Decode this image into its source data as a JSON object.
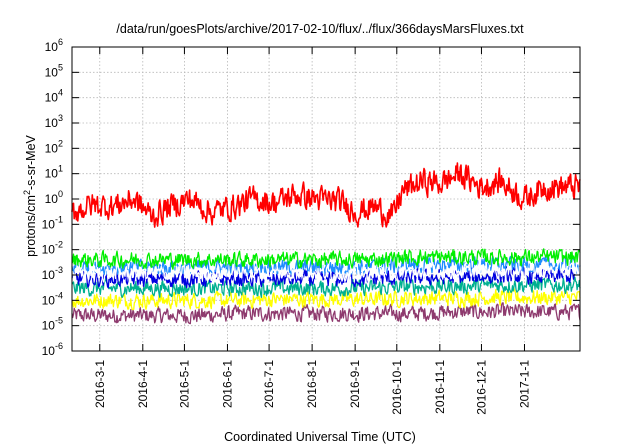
{
  "chart_data": {
    "type": "line",
    "title": "/data/run/goesPlots/archive/2017-02-10/flux/../flux/366daysMarsFluxes.txt",
    "xlabel": "Coordinated Universal Time (UTC)",
    "ylabel": {
      "prefix": "protons/cm",
      "sup": "2",
      "suffix": "-s-sr-MeV"
    },
    "yscale": "log",
    "ylim": [
      1e-06,
      1000000.0
    ],
    "y_ticks": [
      {
        "base": "10",
        "exp": "-6"
      },
      {
        "base": "10",
        "exp": "-5"
      },
      {
        "base": "10",
        "exp": "-4"
      },
      {
        "base": "10",
        "exp": "-3"
      },
      {
        "base": "10",
        "exp": "-2"
      },
      {
        "base": "10",
        "exp": "-1"
      },
      {
        "base": "10",
        "exp": "0"
      },
      {
        "base": "10",
        "exp": "1"
      },
      {
        "base": "10",
        "exp": "2"
      },
      {
        "base": "10",
        "exp": "3"
      },
      {
        "base": "10",
        "exp": "4"
      },
      {
        "base": "10",
        "exp": "5"
      },
      {
        "base": "10",
        "exp": "6"
      }
    ],
    "xlim": [
      "2016-02-10",
      "2017-02-10"
    ],
    "x_ticks": [
      "2016-3-1",
      "2016-4-1",
      "2016-5-1",
      "2016-6-1",
      "2016-7-1",
      "2016-8-1",
      "2016-9-1",
      "2016-10-1",
      "2016-11-1",
      "2016-12-1",
      "2017-1-1"
    ],
    "grid": true,
    "series": [
      {
        "color": "#8e3a6e",
        "dates": [
          "2016-02-10",
          "2016-03-10",
          "2016-04-10",
          "2016-05-10",
          "2016-06-10",
          "2016-07-10",
          "2016-08-10",
          "2016-09-10",
          "2016-10-10",
          "2016-11-10",
          "2016-12-10",
          "2017-01-10",
          "2017-02-10"
        ],
        "values": [
          2.5e-05,
          2.5e-05,
          2.5e-05,
          2.5e-05,
          3e-05,
          3e-05,
          3e-05,
          3e-05,
          3e-05,
          3.5e-05,
          3.5e-05,
          3.5e-05,
          3.5e-05
        ]
      },
      {
        "color": "#ffff00",
        "dates": [
          "2016-02-10",
          "2016-03-10",
          "2016-04-10",
          "2016-05-10",
          "2016-06-10",
          "2016-07-10",
          "2016-08-10",
          "2016-09-10",
          "2016-10-10",
          "2016-11-10",
          "2016-12-10",
          "2017-01-10",
          "2017-02-10"
        ],
        "values": [
          0.0001,
          0.0001,
          0.0001,
          0.0001,
          0.0001,
          0.00011,
          0.00011,
          0.00011,
          0.00012,
          0.00012,
          0.00013,
          0.00013,
          0.00013
        ]
      },
      {
        "color": "#00b090",
        "dates": [
          "2016-02-10",
          "2016-03-10",
          "2016-04-10",
          "2016-05-10",
          "2016-06-10",
          "2016-07-10",
          "2016-08-10",
          "2016-09-10",
          "2016-10-10",
          "2016-11-10",
          "2016-12-10",
          "2017-01-10",
          "2017-02-10"
        ],
        "values": [
          0.0003,
          0.0003,
          0.0003,
          0.0003,
          0.0003,
          0.0003,
          0.0003,
          0.0003,
          0.00035,
          0.00035,
          0.0004,
          0.0004,
          0.0004
        ]
      },
      {
        "color": "#0000e0",
        "dates": [
          "2016-02-10",
          "2016-03-10",
          "2016-04-10",
          "2016-05-10",
          "2016-06-10",
          "2016-07-10",
          "2016-08-10",
          "2016-09-10",
          "2016-10-10",
          "2016-11-10",
          "2016-12-10",
          "2017-01-10",
          "2017-02-10"
        ],
        "values": [
          0.0007,
          0.0007,
          0.0007,
          0.0007,
          0.0007,
          0.0007,
          0.0007,
          0.0007,
          0.0008,
          0.0008,
          0.0009,
          0.0009,
          0.0009
        ]
      },
      {
        "color": "#1e8cff",
        "dates": [
          "2016-02-10",
          "2016-03-10",
          "2016-04-10",
          "2016-05-10",
          "2016-06-10",
          "2016-07-10",
          "2016-08-10",
          "2016-09-10",
          "2016-10-10",
          "2016-11-10",
          "2016-12-10",
          "2017-01-10",
          "2017-02-10"
        ],
        "values": [
          0.002,
          0.002,
          0.002,
          0.002,
          0.002,
          0.002,
          0.002,
          0.002,
          0.0025,
          0.0025,
          0.0025,
          0.0025,
          0.0025
        ]
      },
      {
        "color": "#ffffff",
        "dates": [
          "2016-02-10",
          "2016-03-10",
          "2016-04-10",
          "2016-05-10",
          "2016-06-10",
          "2016-07-10",
          "2016-08-10",
          "2016-09-10",
          "2016-10-10",
          "2016-11-10",
          "2016-12-10",
          "2017-01-10",
          "2017-02-10"
        ],
        "values": [
          0.0012,
          0.0012,
          0.0012,
          0.0012,
          0.0012,
          0.0012,
          0.0012,
          0.0012,
          0.0014,
          0.0014,
          0.0015,
          0.0015,
          0.0015
        ]
      },
      {
        "color": "#00ee00",
        "dates": [
          "2016-02-10",
          "2016-03-10",
          "2016-04-10",
          "2016-05-10",
          "2016-06-10",
          "2016-07-10",
          "2016-08-10",
          "2016-09-10",
          "2016-10-10",
          "2016-11-10",
          "2016-12-10",
          "2017-01-10",
          "2017-02-10"
        ],
        "values": [
          0.004,
          0.004,
          0.004,
          0.004,
          0.004,
          0.004,
          0.004,
          0.004,
          0.005,
          0.005,
          0.005,
          0.005,
          0.005
        ]
      },
      {
        "color": "#ff0000",
        "dates": [
          "2016-02-10",
          "2016-02-25",
          "2016-03-10",
          "2016-03-25",
          "2016-04-08",
          "2016-04-20",
          "2016-05-05",
          "2016-05-20",
          "2016-06-05",
          "2016-06-20",
          "2016-07-05",
          "2016-07-20",
          "2016-08-05",
          "2016-08-20",
          "2016-09-03",
          "2016-09-15",
          "2016-09-28",
          "2016-10-05",
          "2016-10-20",
          "2016-11-01",
          "2016-11-15",
          "2016-12-01",
          "2016-12-15",
          "2017-01-01",
          "2017-01-15",
          "2017-02-01",
          "2017-02-10"
        ],
        "values": [
          0.3,
          0.6,
          0.5,
          1.0,
          0.2,
          0.5,
          1.0,
          0.3,
          0.5,
          1.0,
          0.7,
          1.5,
          1.0,
          0.8,
          0.3,
          0.5,
          0.2,
          2.0,
          5.0,
          4.0,
          10.0,
          3.0,
          5.0,
          1.0,
          3.0,
          3.0,
          3.0
        ]
      }
    ]
  }
}
